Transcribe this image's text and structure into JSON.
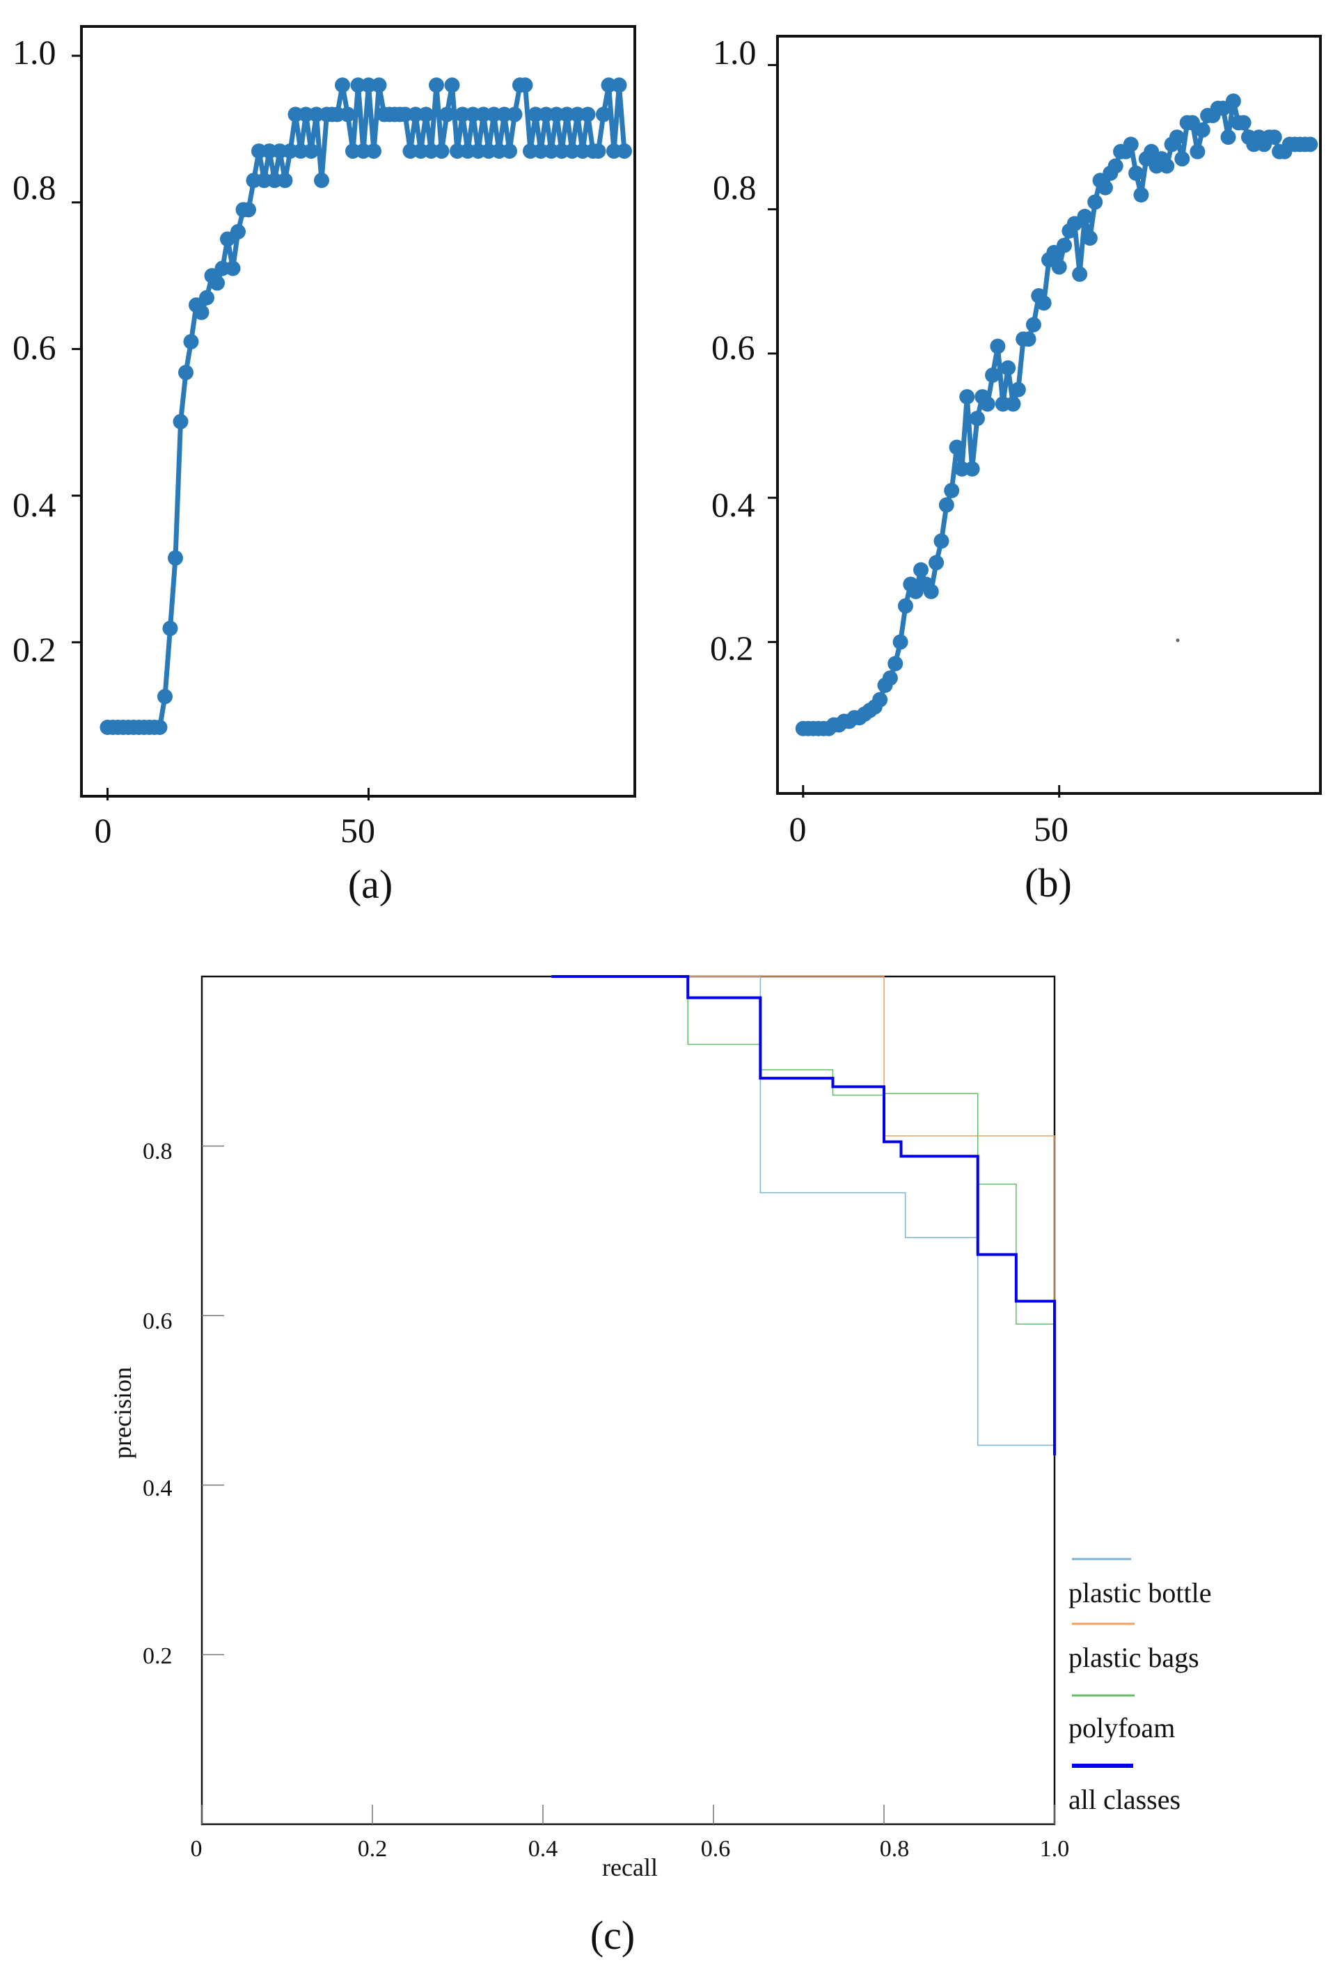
{
  "chart_data": [
    {
      "type": "line",
      "panel": "a",
      "caption": "(a)",
      "title": "",
      "xlabel": "",
      "ylabel": "",
      "xlim": [
        -5,
        101
      ],
      "ylim": [
        -0.01,
        1.04
      ],
      "xticks": [
        0,
        50
      ],
      "yticks": [
        0.2,
        0.4,
        0.6,
        0.8,
        1.0
      ],
      "xtick_labels": [
        "0",
        "50"
      ],
      "ytick_labels": [
        "0.2",
        "0.4",
        "0.6",
        "0.8",
        "1.0"
      ],
      "color": "#2a7ab9",
      "grid": false,
      "y": [
        0.084,
        0.084,
        0.084,
        0.084,
        0.084,
        0.084,
        0.084,
        0.084,
        0.084,
        0.084,
        0.084,
        0.126,
        0.219,
        0.315,
        0.501,
        0.568,
        0.61,
        0.66,
        0.65,
        0.67,
        0.7,
        0.69,
        0.71,
        0.75,
        0.71,
        0.76,
        0.79,
        0.79,
        0.83,
        0.87,
        0.83,
        0.87,
        0.83,
        0.87,
        0.83,
        0.87,
        0.92,
        0.87,
        0.92,
        0.87,
        0.92,
        0.83,
        0.92,
        0.92,
        0.92,
        0.96,
        0.92,
        0.87,
        0.96,
        0.87,
        0.96,
        0.87,
        0.96,
        0.92,
        0.92,
        0.92,
        0.92,
        0.92,
        0.87,
        0.92,
        0.87,
        0.92,
        0.87,
        0.96,
        0.87,
        0.92,
        0.96,
        0.87,
        0.92,
        0.87,
        0.92,
        0.87,
        0.92,
        0.87,
        0.92,
        0.87,
        0.92,
        0.87,
        0.92,
        0.96,
        0.96,
        0.87,
        0.92,
        0.87,
        0.92,
        0.87,
        0.92,
        0.87,
        0.92,
        0.87,
        0.92,
        0.87,
        0.92,
        0.87,
        0.87,
        0.92,
        0.96,
        0.87,
        0.96,
        0.87
      ]
    },
    {
      "type": "line",
      "panel": "b",
      "caption": "(b)",
      "title": "",
      "xlabel": "",
      "ylabel": "",
      "xlim": [
        -5,
        101
      ],
      "ylim": [
        -0.01,
        1.04
      ],
      "xticks": [
        0,
        50
      ],
      "yticks": [
        0.2,
        0.4,
        0.6,
        0.8,
        1.0
      ],
      "xtick_labels": [
        "0",
        "50"
      ],
      "ytick_labels": [
        "0.2",
        "0.4",
        "0.6",
        "0.8",
        "1.0"
      ],
      "color": "#2a7ab9",
      "grid": false,
      "y": [
        0.08,
        0.08,
        0.08,
        0.08,
        0.08,
        0.08,
        0.085,
        0.085,
        0.09,
        0.09,
        0.095,
        0.095,
        0.1,
        0.105,
        0.11,
        0.12,
        0.14,
        0.15,
        0.17,
        0.2,
        0.25,
        0.28,
        0.27,
        0.3,
        0.28,
        0.27,
        0.31,
        0.34,
        0.39,
        0.41,
        0.47,
        0.44,
        0.54,
        0.44,
        0.51,
        0.54,
        0.53,
        0.57,
        0.61,
        0.53,
        0.58,
        0.53,
        0.55,
        0.62,
        0.62,
        0.64,
        0.68,
        0.67,
        0.73,
        0.74,
        0.72,
        0.75,
        0.77,
        0.78,
        0.71,
        0.79,
        0.76,
        0.81,
        0.84,
        0.83,
        0.85,
        0.86,
        0.88,
        0.88,
        0.89,
        0.85,
        0.82,
        0.87,
        0.88,
        0.86,
        0.87,
        0.86,
        0.89,
        0.9,
        0.87,
        0.92,
        0.92,
        0.88,
        0.91,
        0.93,
        0.93,
        0.94,
        0.94,
        0.9,
        0.95,
        0.92,
        0.92,
        0.9,
        0.89,
        0.9,
        0.89,
        0.9,
        0.9,
        0.88,
        0.88,
        0.89,
        0.89,
        0.89,
        0.89,
        0.89
      ]
    },
    {
      "type": "line",
      "panel": "c",
      "caption": "(c)",
      "title": "",
      "xlabel": "recall",
      "ylabel": "precision",
      "xlim": [
        0,
        1
      ],
      "ylim": [
        0,
        1
      ],
      "xticks": [
        0,
        0.2,
        0.4,
        0.6,
        0.8,
        1.0
      ],
      "yticks": [
        0.2,
        0.4,
        0.6,
        0.8
      ],
      "xtick_labels": [
        "0",
        "0.2",
        "0.4",
        "0.6",
        "0.8",
        "1.0"
      ],
      "ytick_labels": [
        "0.2",
        "0.4",
        "0.6",
        "0.8"
      ],
      "grid": false,
      "legend": "bottom-right",
      "series": [
        {
          "name": "plastic bottle",
          "color": "#7fb3d5",
          "width": 1.5,
          "x": [
            0.41,
            0.655,
            0.655,
            0.825,
            0.825,
            0.91,
            0.91,
            1.0,
            1.0
          ],
          "y": [
            1.0,
            1.0,
            0.745,
            0.745,
            0.692,
            0.692,
            0.447,
            0.447,
            0.435
          ]
        },
        {
          "name": "plastic bags",
          "color": "#f0a060",
          "width": 1.5,
          "x": [
            0.41,
            0.8,
            0.8,
            1.0,
            1.0
          ],
          "y": [
            1.0,
            1.0,
            0.812,
            0.812,
            0.435
          ]
        },
        {
          "name": "polyfoam",
          "color": "#66bb66",
          "width": 1.5,
          "x": [
            0.41,
            0.57,
            0.57,
            0.655,
            0.655,
            0.74,
            0.74,
            0.8,
            0.8,
            0.91,
            0.91,
            0.955,
            0.955,
            1.0,
            1.0
          ],
          "y": [
            1.0,
            1.0,
            0.92,
            0.92,
            0.89,
            0.89,
            0.86,
            0.86,
            0.862,
            0.862,
            0.755,
            0.755,
            0.59,
            0.59,
            0.435
          ]
        },
        {
          "name": "all classes",
          "color": "#0000ee",
          "width": 4,
          "x": [
            0.41,
            0.57,
            0.57,
            0.655,
            0.655,
            0.74,
            0.74,
            0.8,
            0.8,
            0.82,
            0.82,
            0.91,
            0.91,
            0.955,
            0.955,
            1.0,
            1.0
          ],
          "y": [
            1.0,
            1.0,
            0.975,
            0.975,
            0.88,
            0.88,
            0.87,
            0.87,
            0.805,
            0.805,
            0.788,
            0.788,
            0.672,
            0.672,
            0.617,
            0.617,
            0.435
          ]
        }
      ]
    }
  ]
}
